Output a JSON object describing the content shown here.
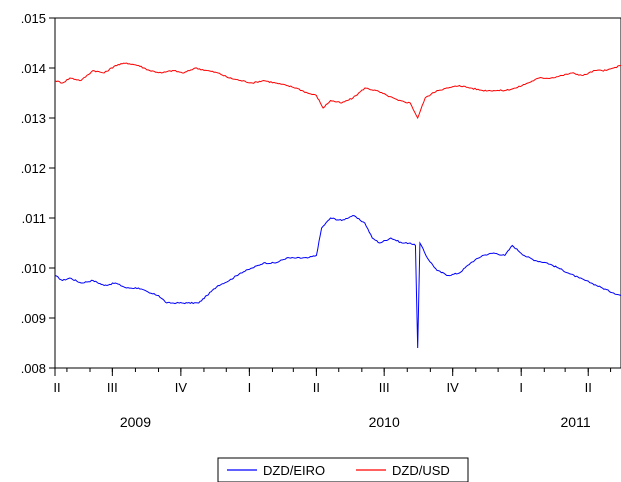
{
  "chart_data": {
    "type": "line",
    "title": "",
    "xlabel": "",
    "ylabel": "",
    "ylim": [
      0.008,
      0.015
    ],
    "y_ticks": [
      ".008",
      ".009",
      ".010",
      ".011",
      ".012",
      ".013",
      ".014",
      ".015"
    ],
    "x_range": [
      "2009-04-15",
      "2011-05-15"
    ],
    "quarter_ticks": [
      {
        "date": "2009-04-01",
        "label": "II"
      },
      {
        "date": "2009-07-01",
        "label": "III"
      },
      {
        "date": "2009-10-01",
        "label": "IV"
      },
      {
        "date": "2010-01-01",
        "label": "I"
      },
      {
        "date": "2010-04-01",
        "label": "II"
      },
      {
        "date": "2010-07-01",
        "label": "III"
      },
      {
        "date": "2010-10-01",
        "label": "IV"
      },
      {
        "date": "2011-01-01",
        "label": "I"
      },
      {
        "date": "2011-04-01",
        "label": "II"
      }
    ],
    "year_labels": [
      {
        "date": "2009-08-01",
        "label": "2009"
      },
      {
        "date": "2010-07-01",
        "label": "2010"
      },
      {
        "date": "2011-03-15",
        "label": "2011"
      }
    ],
    "legend_position": "bottom-center",
    "grid": false,
    "series": [
      {
        "name": "DZD/EIRO",
        "color": "#0000ff",
        "points": [
          [
            "2009-04-15",
            0.00985
          ],
          [
            "2009-04-25",
            0.00975
          ],
          [
            "2009-05-05",
            0.0098
          ],
          [
            "2009-05-20",
            0.0097
          ],
          [
            "2009-06-05",
            0.00975
          ],
          [
            "2009-06-20",
            0.00965
          ],
          [
            "2009-07-05",
            0.0097
          ],
          [
            "2009-07-20",
            0.0096
          ],
          [
            "2009-08-05",
            0.0096
          ],
          [
            "2009-08-20",
            0.0095
          ],
          [
            "2009-09-01",
            0.00945
          ],
          [
            "2009-09-12",
            0.0093
          ],
          [
            "2009-09-25",
            0.0093
          ],
          [
            "2009-10-10",
            0.0093
          ],
          [
            "2009-10-25",
            0.0093
          ],
          [
            "2009-11-05",
            0.00945
          ],
          [
            "2009-11-20",
            0.00965
          ],
          [
            "2009-12-05",
            0.00975
          ],
          [
            "2009-12-20",
            0.0099
          ],
          [
            "2010-01-05",
            0.01
          ],
          [
            "2010-01-20",
            0.0101
          ],
          [
            "2010-02-05",
            0.0101
          ],
          [
            "2010-02-20",
            0.0102
          ],
          [
            "2010-03-05",
            0.0102
          ],
          [
            "2010-03-20",
            0.0102
          ],
          [
            "2010-04-01",
            0.01025
          ],
          [
            "2010-04-08",
            0.0108
          ],
          [
            "2010-04-20",
            0.011
          ],
          [
            "2010-05-05",
            0.01095
          ],
          [
            "2010-05-20",
            0.01105
          ],
          [
            "2010-06-05",
            0.0109
          ],
          [
            "2010-06-15",
            0.0106
          ],
          [
            "2010-06-25",
            0.0105
          ],
          [
            "2010-07-10",
            0.0106
          ],
          [
            "2010-07-25",
            0.0105
          ],
          [
            "2010-08-05",
            0.0105
          ],
          [
            "2010-08-12",
            0.01045
          ],
          [
            "2010-08-15",
            0.0084
          ],
          [
            "2010-08-18",
            0.0105
          ],
          [
            "2010-08-28",
            0.0102
          ],
          [
            "2010-09-10",
            0.00995
          ],
          [
            "2010-09-25",
            0.00985
          ],
          [
            "2010-10-10",
            0.0099
          ],
          [
            "2010-10-25",
            0.0101
          ],
          [
            "2010-11-10",
            0.01025
          ],
          [
            "2010-11-25",
            0.0103
          ],
          [
            "2010-12-10",
            0.01025
          ],
          [
            "2010-12-20",
            0.01045
          ],
          [
            "2011-01-05",
            0.01025
          ],
          [
            "2011-01-20",
            0.01015
          ],
          [
            "2011-02-05",
            0.0101
          ],
          [
            "2011-02-20",
            0.01
          ],
          [
            "2011-03-05",
            0.0099
          ],
          [
            "2011-03-20",
            0.0098
          ],
          [
            "2011-04-05",
            0.0097
          ],
          [
            "2011-04-20",
            0.0096
          ],
          [
            "2011-05-05",
            0.0095
          ],
          [
            "2011-05-15",
            0.00945
          ]
        ]
      },
      {
        "name": "DZD/USD",
        "color": "#ff0000",
        "points": [
          [
            "2009-04-15",
            0.01375
          ],
          [
            "2009-04-25",
            0.0137
          ],
          [
            "2009-05-05",
            0.0138
          ],
          [
            "2009-05-20",
            0.01375
          ],
          [
            "2009-06-05",
            0.01395
          ],
          [
            "2009-06-20",
            0.0139
          ],
          [
            "2009-07-05",
            0.01405
          ],
          [
            "2009-07-20",
            0.0141
          ],
          [
            "2009-08-05",
            0.01405
          ],
          [
            "2009-08-20",
            0.01395
          ],
          [
            "2009-09-05",
            0.0139
          ],
          [
            "2009-09-20",
            0.01395
          ],
          [
            "2009-10-05",
            0.0139
          ],
          [
            "2009-10-20",
            0.014
          ],
          [
            "2009-11-05",
            0.01395
          ],
          [
            "2009-11-20",
            0.0139
          ],
          [
            "2009-12-05",
            0.0138
          ],
          [
            "2009-12-20",
            0.01375
          ],
          [
            "2010-01-05",
            0.0137
          ],
          [
            "2010-01-20",
            0.01375
          ],
          [
            "2010-02-05",
            0.0137
          ],
          [
            "2010-02-20",
            0.01365
          ],
          [
            "2010-03-05",
            0.0136
          ],
          [
            "2010-03-20",
            0.0135
          ],
          [
            "2010-04-01",
            0.01345
          ],
          [
            "2010-04-10",
            0.0132
          ],
          [
            "2010-04-20",
            0.01335
          ],
          [
            "2010-05-05",
            0.0133
          ],
          [
            "2010-05-20",
            0.0134
          ],
          [
            "2010-06-05",
            0.0136
          ],
          [
            "2010-06-20",
            0.01355
          ],
          [
            "2010-07-05",
            0.01345
          ],
          [
            "2010-07-20",
            0.01335
          ],
          [
            "2010-08-05",
            0.0133
          ],
          [
            "2010-08-15",
            0.013
          ],
          [
            "2010-08-25",
            0.0134
          ],
          [
            "2010-09-10",
            0.01355
          ],
          [
            "2010-09-25",
            0.0136
          ],
          [
            "2010-10-10",
            0.01365
          ],
          [
            "2010-10-25",
            0.0136
          ],
          [
            "2010-11-10",
            0.01355
          ],
          [
            "2010-11-25",
            0.01355
          ],
          [
            "2010-12-10",
            0.01355
          ],
          [
            "2010-12-25",
            0.0136
          ],
          [
            "2011-01-10",
            0.0137
          ],
          [
            "2011-01-25",
            0.0138
          ],
          [
            "2011-02-10",
            0.0138
          ],
          [
            "2011-02-25",
            0.01385
          ],
          [
            "2011-03-10",
            0.0139
          ],
          [
            "2011-03-25",
            0.01385
          ],
          [
            "2011-04-10",
            0.01395
          ],
          [
            "2011-04-25",
            0.01395
          ],
          [
            "2011-05-05",
            0.014
          ],
          [
            "2011-05-15",
            0.01405
          ]
        ]
      }
    ]
  }
}
